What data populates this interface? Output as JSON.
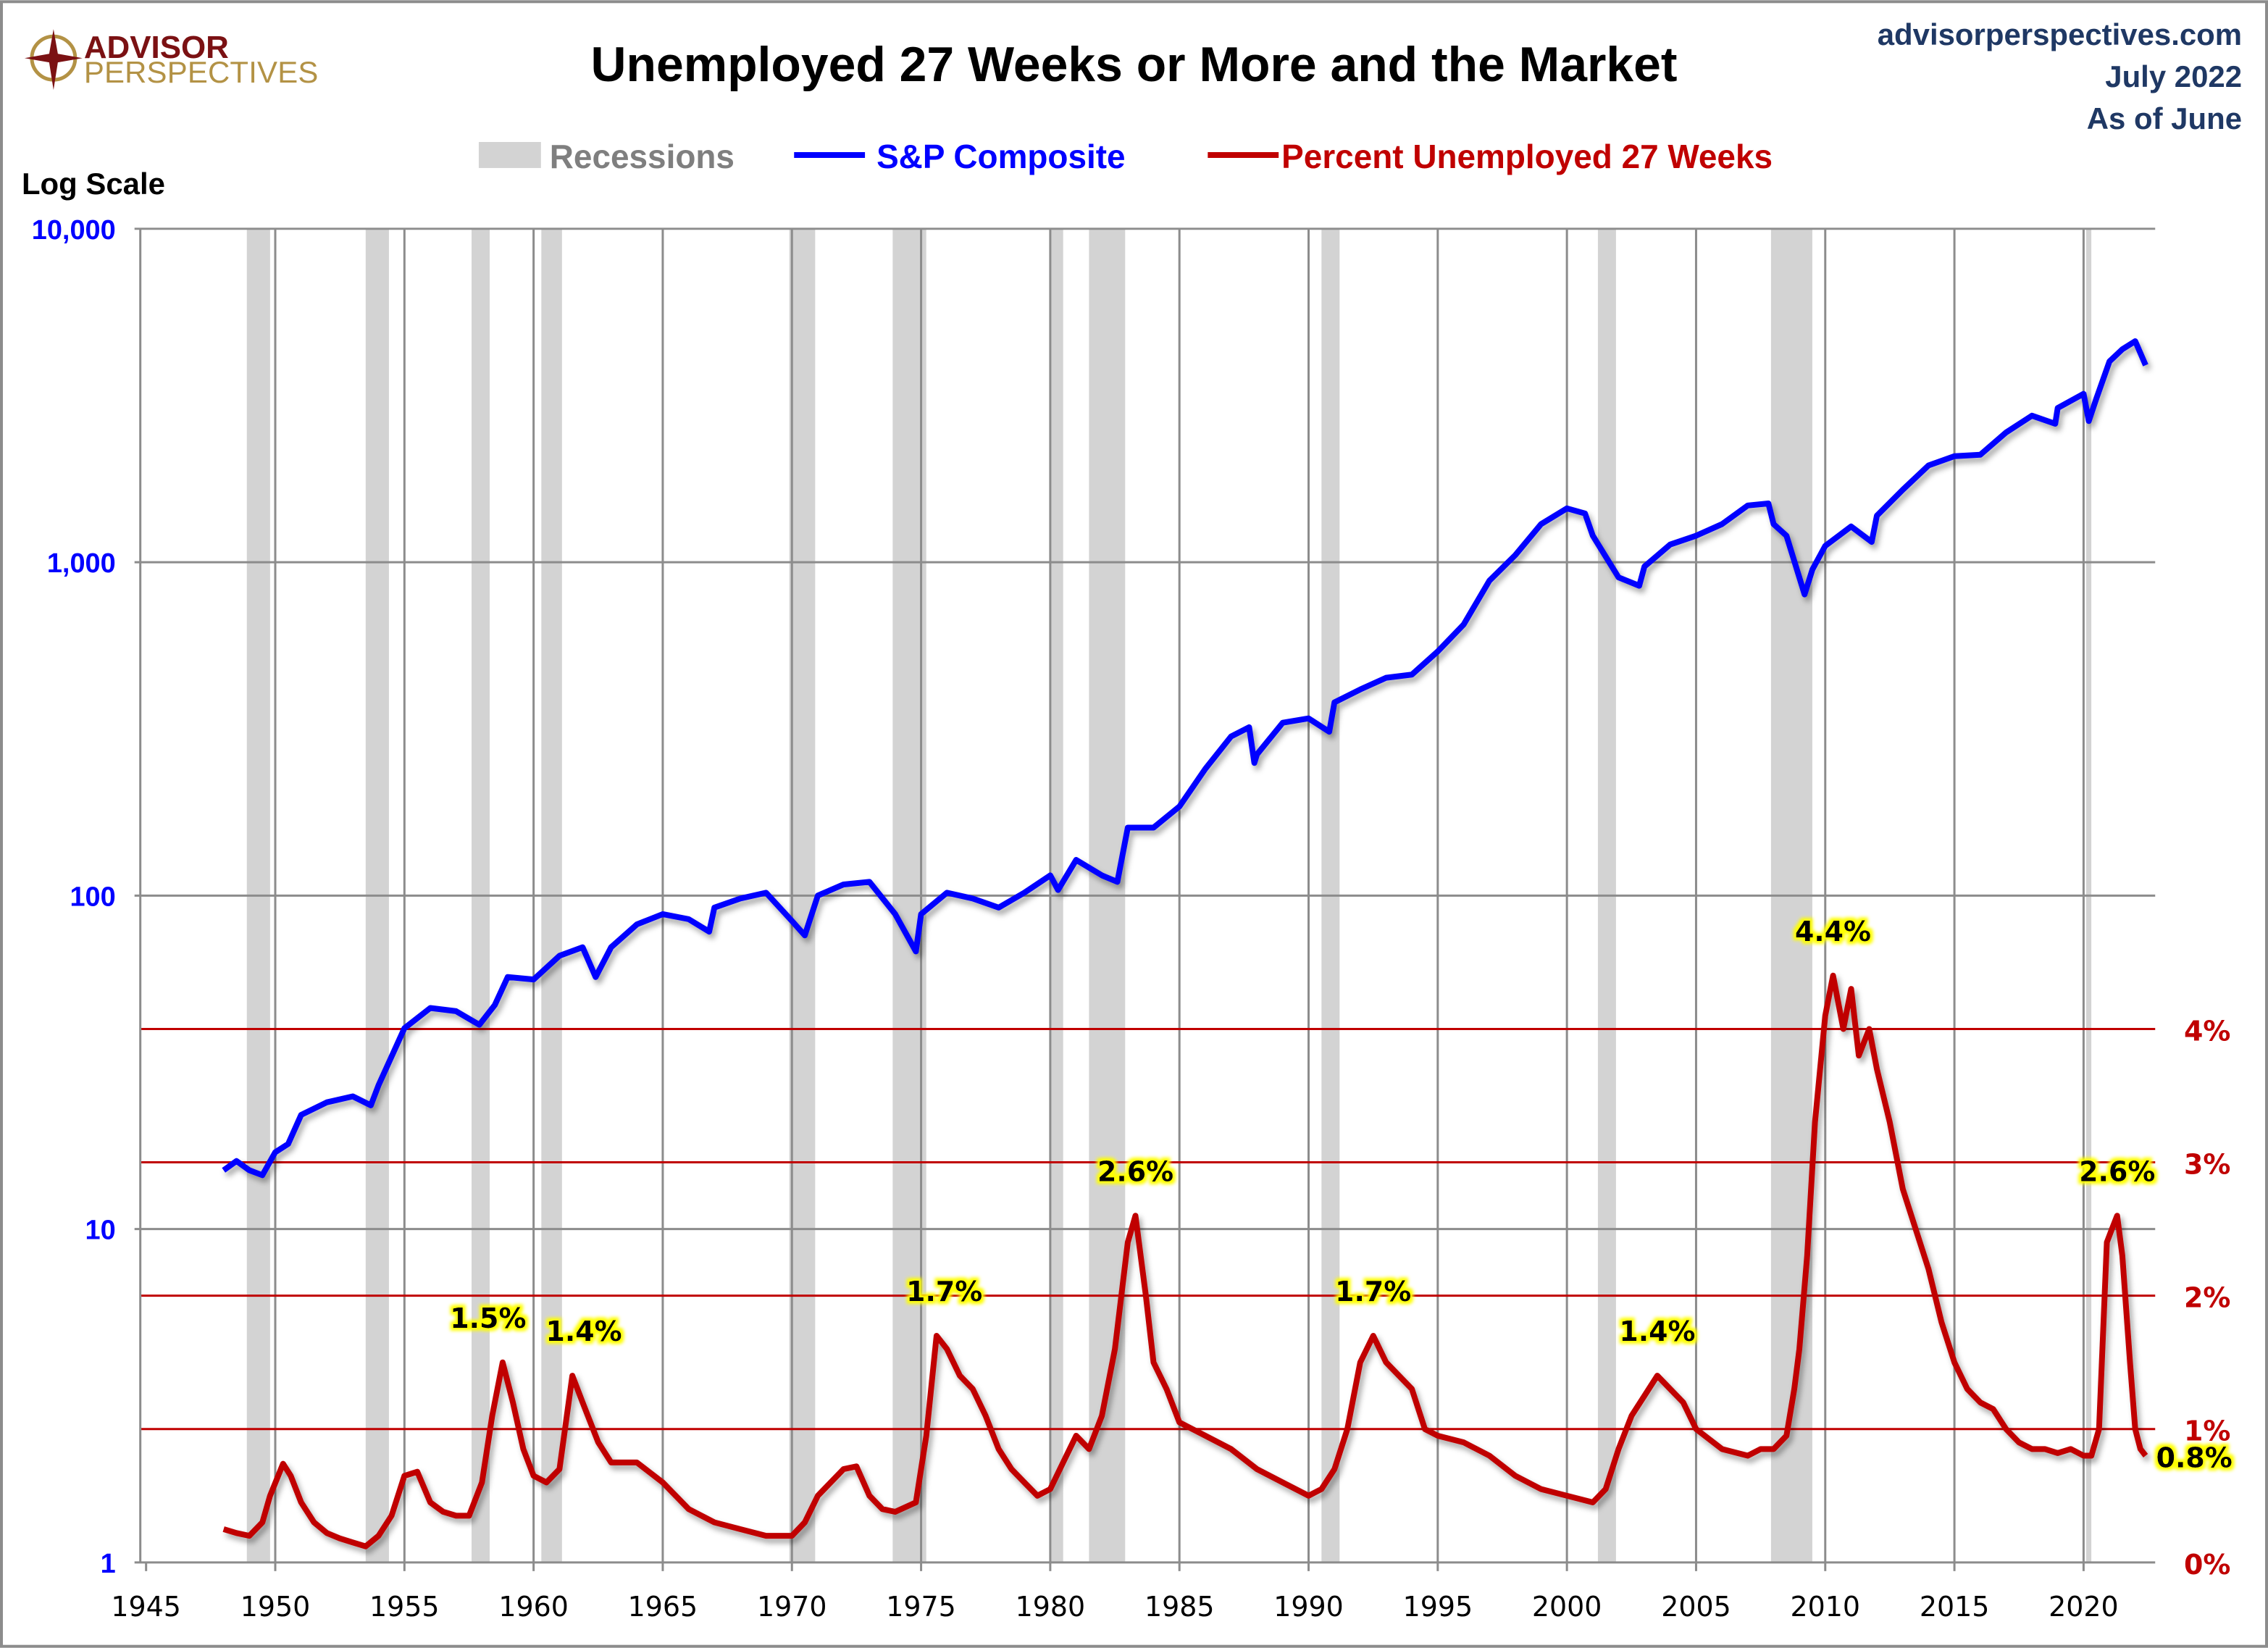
{
  "logo": {
    "line1": "ADVISOR",
    "line2": "PERSPECTIVES"
  },
  "source": {
    "site": "advisorperspectives.com",
    "date": "July 2022",
    "asof": "As of June"
  },
  "colors": {
    "sp": "#0000FF",
    "unemp": "#C00000",
    "recession": "#D3D3D3",
    "annotation_bg": "#FFFF00",
    "header_text": "#1F3864"
  },
  "chart_data": {
    "type": "line",
    "title": "Unemployed 27 Weeks or More and the Market",
    "left_axis_title": "Log Scale",
    "grid": true,
    "legend_position": "top",
    "legend": {
      "recessions": "Recessions",
      "sp": "S&P Composite",
      "unemp": "Percent Unemployed 27 Weeks"
    },
    "xlim": [
      1945,
      2023
    ],
    "x_ticks": [
      "1945",
      "1950",
      "1955",
      "1960",
      "1965",
      "1970",
      "1975",
      "1980",
      "1985",
      "1990",
      "1995",
      "2000",
      "2005",
      "2010",
      "2015",
      "2020"
    ],
    "y_left": {
      "scale": "log",
      "ylim": [
        1,
        10000
      ],
      "ticks": [
        "1",
        "10",
        "100",
        "1,000",
        "10,000"
      ]
    },
    "y_right": {
      "scale": "linear",
      "ylim": [
        0,
        10
      ],
      "ticks": [
        "0%",
        "1%",
        "2%",
        "3%",
        "4%"
      ]
    },
    "recessions": [
      [
        1948.9,
        1949.8
      ],
      [
        1953.5,
        1954.4
      ],
      [
        1957.6,
        1958.3
      ],
      [
        1960.3,
        1961.1
      ],
      [
        1969.9,
        1970.9
      ],
      [
        1973.9,
        1975.2
      ],
      [
        1980.0,
        1980.5
      ],
      [
        1981.5,
        1982.9
      ],
      [
        1990.5,
        1991.2
      ],
      [
        2001.2,
        2001.9
      ],
      [
        2007.9,
        2009.5
      ],
      [
        2020.1,
        2020.3
      ]
    ],
    "series": [
      {
        "name": "S&P Composite",
        "axis": "left",
        "x": [
          1948,
          1948.5,
          1949,
          1949.5,
          1950,
          1950.5,
          1951,
          1952,
          1953,
          1953.7,
          1954,
          1955,
          1956,
          1957,
          1957.9,
          1958.5,
          1959,
          1960,
          1961,
          1961.9,
          1962.4,
          1963,
          1964,
          1965,
          1966,
          1966.8,
          1967,
          1968,
          1969,
          1970,
          1970.5,
          1971,
          1972,
          1973,
          1974,
          1974.8,
          1975,
          1976,
          1977,
          1978,
          1979,
          1980,
          1980.3,
          1981,
          1982,
          1982.6,
          1983,
          1984,
          1985,
          1986,
          1987,
          1987.7,
          1987.9,
          1988,
          1989,
          1990,
          1990.8,
          1991,
          1992,
          1993,
          1994,
          1995,
          1996,
          1997,
          1998,
          1999,
          2000,
          2000.7,
          2001,
          2002,
          2002.8,
          2003,
          2004,
          2005,
          2006,
          2007,
          2007.8,
          2008,
          2008.5,
          2009.2,
          2009.5,
          2010,
          2011,
          2011.8,
          2012,
          2013,
          2014,
          2015,
          2016,
          2017,
          2018,
          2018.9,
          2019,
          2020,
          2020.2,
          2020.5,
          2021,
          2021.5,
          2022,
          2022.4
        ],
        "y": [
          15,
          16,
          15,
          14.5,
          17,
          18,
          22,
          24,
          25,
          23.5,
          27,
          40,
          46,
          45,
          41,
          47,
          57,
          56,
          66,
          70,
          57,
          70,
          82,
          88,
          85,
          78,
          92,
          98,
          102,
          84,
          76,
          100,
          108,
          110,
          88,
          68,
          88,
          102,
          98,
          92,
          102,
          115,
          104,
          128,
          115,
          110,
          160,
          160,
          185,
          240,
          300,
          320,
          250,
          265,
          330,
          340,
          310,
          380,
          415,
          450,
          460,
          540,
          650,
          880,
          1050,
          1300,
          1450,
          1400,
          1200,
          900,
          850,
          970,
          1130,
          1200,
          1300,
          1480,
          1500,
          1300,
          1200,
          800,
          950,
          1120,
          1280,
          1150,
          1380,
          1650,
          1950,
          2080,
          2100,
          2450,
          2750,
          2600,
          2900,
          3200,
          2650,
          3100,
          4000,
          4350,
          4600,
          3900
        ]
      },
      {
        "name": "Percent Unemployed 27 Weeks",
        "axis": "right",
        "x": [
          1948,
          1948.5,
          1949,
          1949.5,
          1949.8,
          1950.3,
          1950.6,
          1951,
          1951.5,
          1952,
          1952.5,
          1953,
          1953.5,
          1954,
          1954.5,
          1955,
          1955.5,
          1956,
          1956.5,
          1957,
          1957.5,
          1958,
          1958.4,
          1958.8,
          1959.2,
          1959.6,
          1960,
          1960.5,
          1961,
          1961.5,
          1961.9,
          1962.5,
          1963,
          1964,
          1965,
          1966,
          1967,
          1968,
          1969,
          1970,
          1970.5,
          1971,
          1971.5,
          1972,
          1972.5,
          1973,
          1973.5,
          1974,
          1974.8,
          1975.2,
          1975.6,
          1976,
          1976.5,
          1977,
          1977.5,
          1978,
          1978.5,
          1979,
          1979.5,
          1980,
          1980.5,
          1981,
          1981.5,
          1982,
          1982.5,
          1983,
          1983.3,
          1983.7,
          1984,
          1984.5,
          1985,
          1986,
          1987,
          1988,
          1989,
          1990,
          1990.5,
          1991,
          1991.5,
          1992,
          1992.5,
          1993,
          1993.5,
          1994,
          1994.5,
          1995,
          1996,
          1997,
          1998,
          1999,
          2000,
          2001,
          2001.5,
          2002,
          2002.5,
          2003,
          2003.5,
          2004,
          2004.5,
          2005,
          2006,
          2007,
          2007.5,
          2008,
          2008.5,
          2008.8,
          2009,
          2009.3,
          2009.6,
          2010,
          2010.3,
          2010.7,
          2011,
          2011.3,
          2011.7,
          2012,
          2012.5,
          2013,
          2013.5,
          2014,
          2014.5,
          2015,
          2015.5,
          2016,
          2016.5,
          2017,
          2017.5,
          2018,
          2018.5,
          2019,
          2019.5,
          2020,
          2020.3,
          2020.6,
          2020.9,
          2021.1,
          2021.3,
          2021.5,
          2021.8,
          2022,
          2022.2,
          2022.4
        ],
        "y": [
          0.25,
          0.22,
          0.2,
          0.3,
          0.5,
          0.74,
          0.65,
          0.45,
          0.3,
          0.22,
          0.18,
          0.15,
          0.12,
          0.2,
          0.35,
          0.65,
          0.68,
          0.45,
          0.38,
          0.35,
          0.35,
          0.6,
          1.1,
          1.5,
          1.2,
          0.85,
          0.65,
          0.6,
          0.7,
          1.4,
          1.2,
          0.9,
          0.75,
          0.75,
          0.6,
          0.4,
          0.3,
          0.25,
          0.2,
          0.2,
          0.3,
          0.5,
          0.6,
          0.7,
          0.72,
          0.5,
          0.4,
          0.38,
          0.45,
          0.95,
          1.7,
          1.6,
          1.4,
          1.3,
          1.1,
          0.85,
          0.7,
          0.6,
          0.5,
          0.55,
          0.75,
          0.95,
          0.85,
          1.1,
          1.6,
          2.4,
          2.6,
          2.0,
          1.5,
          1.3,
          1.05,
          0.95,
          0.85,
          0.7,
          0.6,
          0.5,
          0.55,
          0.7,
          1.0,
          1.5,
          1.7,
          1.5,
          1.4,
          1.3,
          1.0,
          0.95,
          0.9,
          0.8,
          0.65,
          0.55,
          0.5,
          0.45,
          0.55,
          0.85,
          1.1,
          1.25,
          1.4,
          1.3,
          1.2,
          1.0,
          0.85,
          0.8,
          0.85,
          0.85,
          0.95,
          1.3,
          1.6,
          2.3,
          3.3,
          4.1,
          4.4,
          4.0,
          4.3,
          3.8,
          4.0,
          3.7,
          3.3,
          2.8,
          2.5,
          2.2,
          1.8,
          1.5,
          1.3,
          1.2,
          1.15,
          1.0,
          0.9,
          0.85,
          0.85,
          0.82,
          0.85,
          0.8,
          0.8,
          1.0,
          2.4,
          2.5,
          2.6,
          2.3,
          1.5,
          1.0,
          0.85,
          0.8
        ]
      }
    ],
    "annotations": [
      {
        "x": 1958.8,
        "y": 1.5,
        "label": "1.5%"
      },
      {
        "x": 1961.5,
        "y": 1.4,
        "label": "1.4%"
      },
      {
        "x": 1975.9,
        "y": 1.7,
        "label": "1.7%"
      },
      {
        "x": 1983.3,
        "y": 2.6,
        "label": "2.6%"
      },
      {
        "x": 1992.5,
        "y": 1.7,
        "label": "1.7%"
      },
      {
        "x": 2003.5,
        "y": 1.4,
        "label": "1.4%"
      },
      {
        "x": 2010.3,
        "y": 4.4,
        "label": "4.4%"
      },
      {
        "x": 2021.3,
        "y": 2.6,
        "label": "2.6%"
      },
      {
        "x": 2022.4,
        "y": 0.8,
        "label": "0.8%"
      }
    ]
  }
}
